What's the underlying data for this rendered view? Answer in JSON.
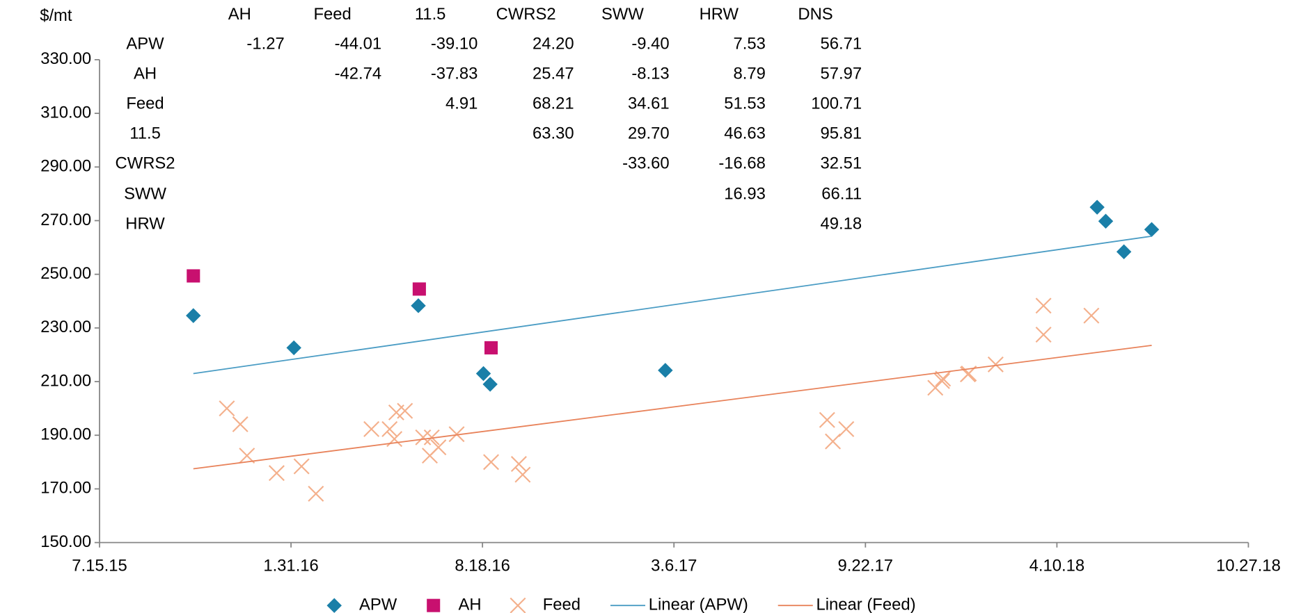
{
  "chart_data": {
    "type": "scatter",
    "y_label": "$/mt",
    "xlim": [
      "2015-07-15",
      "2018-10-27"
    ],
    "xticks": [
      {
        "value": "2015-07-15",
        "label": "7.15.15"
      },
      {
        "value": "2016-01-31",
        "label": "1.31.16"
      },
      {
        "value": "2016-08-18",
        "label": "8.18.16"
      },
      {
        "value": "2017-03-06",
        "label": "3.6.17"
      },
      {
        "value": "2017-09-22",
        "label": "9.22.17"
      },
      {
        "value": "2018-04-10",
        "label": "4.10.18"
      },
      {
        "value": "2018-10-27",
        "label": "10.27.18"
      }
    ],
    "ylim": [
      150,
      330
    ],
    "yticks": [
      {
        "value": 150,
        "label": "150.00"
      },
      {
        "value": 170,
        "label": "170.00"
      },
      {
        "value": 190,
        "label": "190.00"
      },
      {
        "value": 210,
        "label": "210.00"
      },
      {
        "value": 230,
        "label": "230.00"
      },
      {
        "value": 250,
        "label": "250.00"
      },
      {
        "value": 270,
        "label": "270.00"
      },
      {
        "value": 290,
        "label": "290.00"
      },
      {
        "value": 310,
        "label": "310.00"
      },
      {
        "value": 330,
        "label": "330.00"
      }
    ],
    "legend": "bottom",
    "series": [
      {
        "name": "APW",
        "marker": "diamond",
        "color": "#1a7fa8",
        "x": [
          "2015-10-21",
          "2016-02-03",
          "2016-06-12",
          "2016-08-19",
          "2016-08-26",
          "2017-02-25",
          "2018-05-22",
          "2018-05-31",
          "2018-06-19",
          "2018-07-18"
        ],
        "values": [
          234.6,
          222.6,
          238.3,
          213.0,
          209.0,
          214.2,
          275.0,
          269.8,
          258.4,
          266.7
        ]
      },
      {
        "name": "AH",
        "marker": "square",
        "color": "#c8106f",
        "x": [
          "2015-10-21",
          "2016-06-13",
          "2016-08-27"
        ],
        "values": [
          249.4,
          244.5,
          222.6
        ]
      },
      {
        "name": "Feed",
        "marker": "x",
        "color": "#f4b08c",
        "x": [
          "2015-11-25",
          "2015-12-09",
          "2015-12-16",
          "2016-01-16",
          "2016-02-11",
          "2016-02-26",
          "2016-04-24",
          "2016-05-13",
          "2016-05-18",
          "2016-05-20",
          "2016-05-29",
          "2016-06-17",
          "2016-06-24",
          "2016-06-26",
          "2016-07-03",
          "2016-07-22",
          "2016-08-27",
          "2016-09-25",
          "2016-09-29",
          "2017-08-13",
          "2017-08-19",
          "2017-09-02",
          "2017-12-04",
          "2017-12-11",
          "2017-12-12",
          "2018-01-07",
          "2018-01-08",
          "2018-02-05",
          "2018-03-27",
          "2018-03-27",
          "2018-05-16"
        ],
        "values": [
          200.0,
          194.1,
          182.4,
          175.9,
          178.4,
          168.2,
          192.3,
          192.3,
          188.6,
          198.5,
          199.1,
          189.2,
          182.4,
          189.2,
          185.5,
          190.4,
          180.0,
          179.3,
          175.3,
          195.7,
          187.7,
          192.3,
          207.7,
          210.2,
          211.1,
          212.7,
          213.0,
          216.4,
          238.3,
          227.5,
          234.6
        ]
      },
      {
        "name": "Linear (APW)",
        "marker": "line",
        "color": "#4a9cc4",
        "x": [
          "2015-10-21",
          "2018-07-18"
        ],
        "values": [
          213.0,
          264.2
        ]
      },
      {
        "name": "Linear (Feed)",
        "marker": "line",
        "color": "#e8825a",
        "x": [
          "2015-10-21",
          "2018-07-18"
        ],
        "values": [
          177.5,
          223.5
        ]
      }
    ],
    "table": {
      "columns": [
        "AH",
        "Feed",
        "11.5",
        "CWRS2",
        "SWW",
        "HRW",
        "DNS"
      ],
      "rows": [
        {
          "label": "APW",
          "cells": [
            "-1.27",
            "-44.01",
            "-39.10",
            "24.20",
            "-9.40",
            "7.53",
            "56.71"
          ]
        },
        {
          "label": "AH",
          "cells": [
            null,
            "-42.74",
            "-37.83",
            "25.47",
            "-8.13",
            "8.79",
            "57.97"
          ]
        },
        {
          "label": "Feed",
          "cells": [
            null,
            null,
            "4.91",
            "68.21",
            "34.61",
            "51.53",
            "100.71"
          ]
        },
        {
          "label": "11.5",
          "cells": [
            null,
            null,
            null,
            "63.30",
            "29.70",
            "46.63",
            "95.81"
          ]
        },
        {
          "label": "CWRS2",
          "cells": [
            null,
            null,
            null,
            null,
            "-33.60",
            "-16.68",
            "32.51"
          ]
        },
        {
          "label": "SWW",
          "cells": [
            null,
            null,
            null,
            null,
            null,
            "16.93",
            "66.11"
          ]
        },
        {
          "label": "HRW",
          "cells": [
            null,
            null,
            null,
            null,
            null,
            null,
            "49.18"
          ]
        }
      ]
    }
  }
}
